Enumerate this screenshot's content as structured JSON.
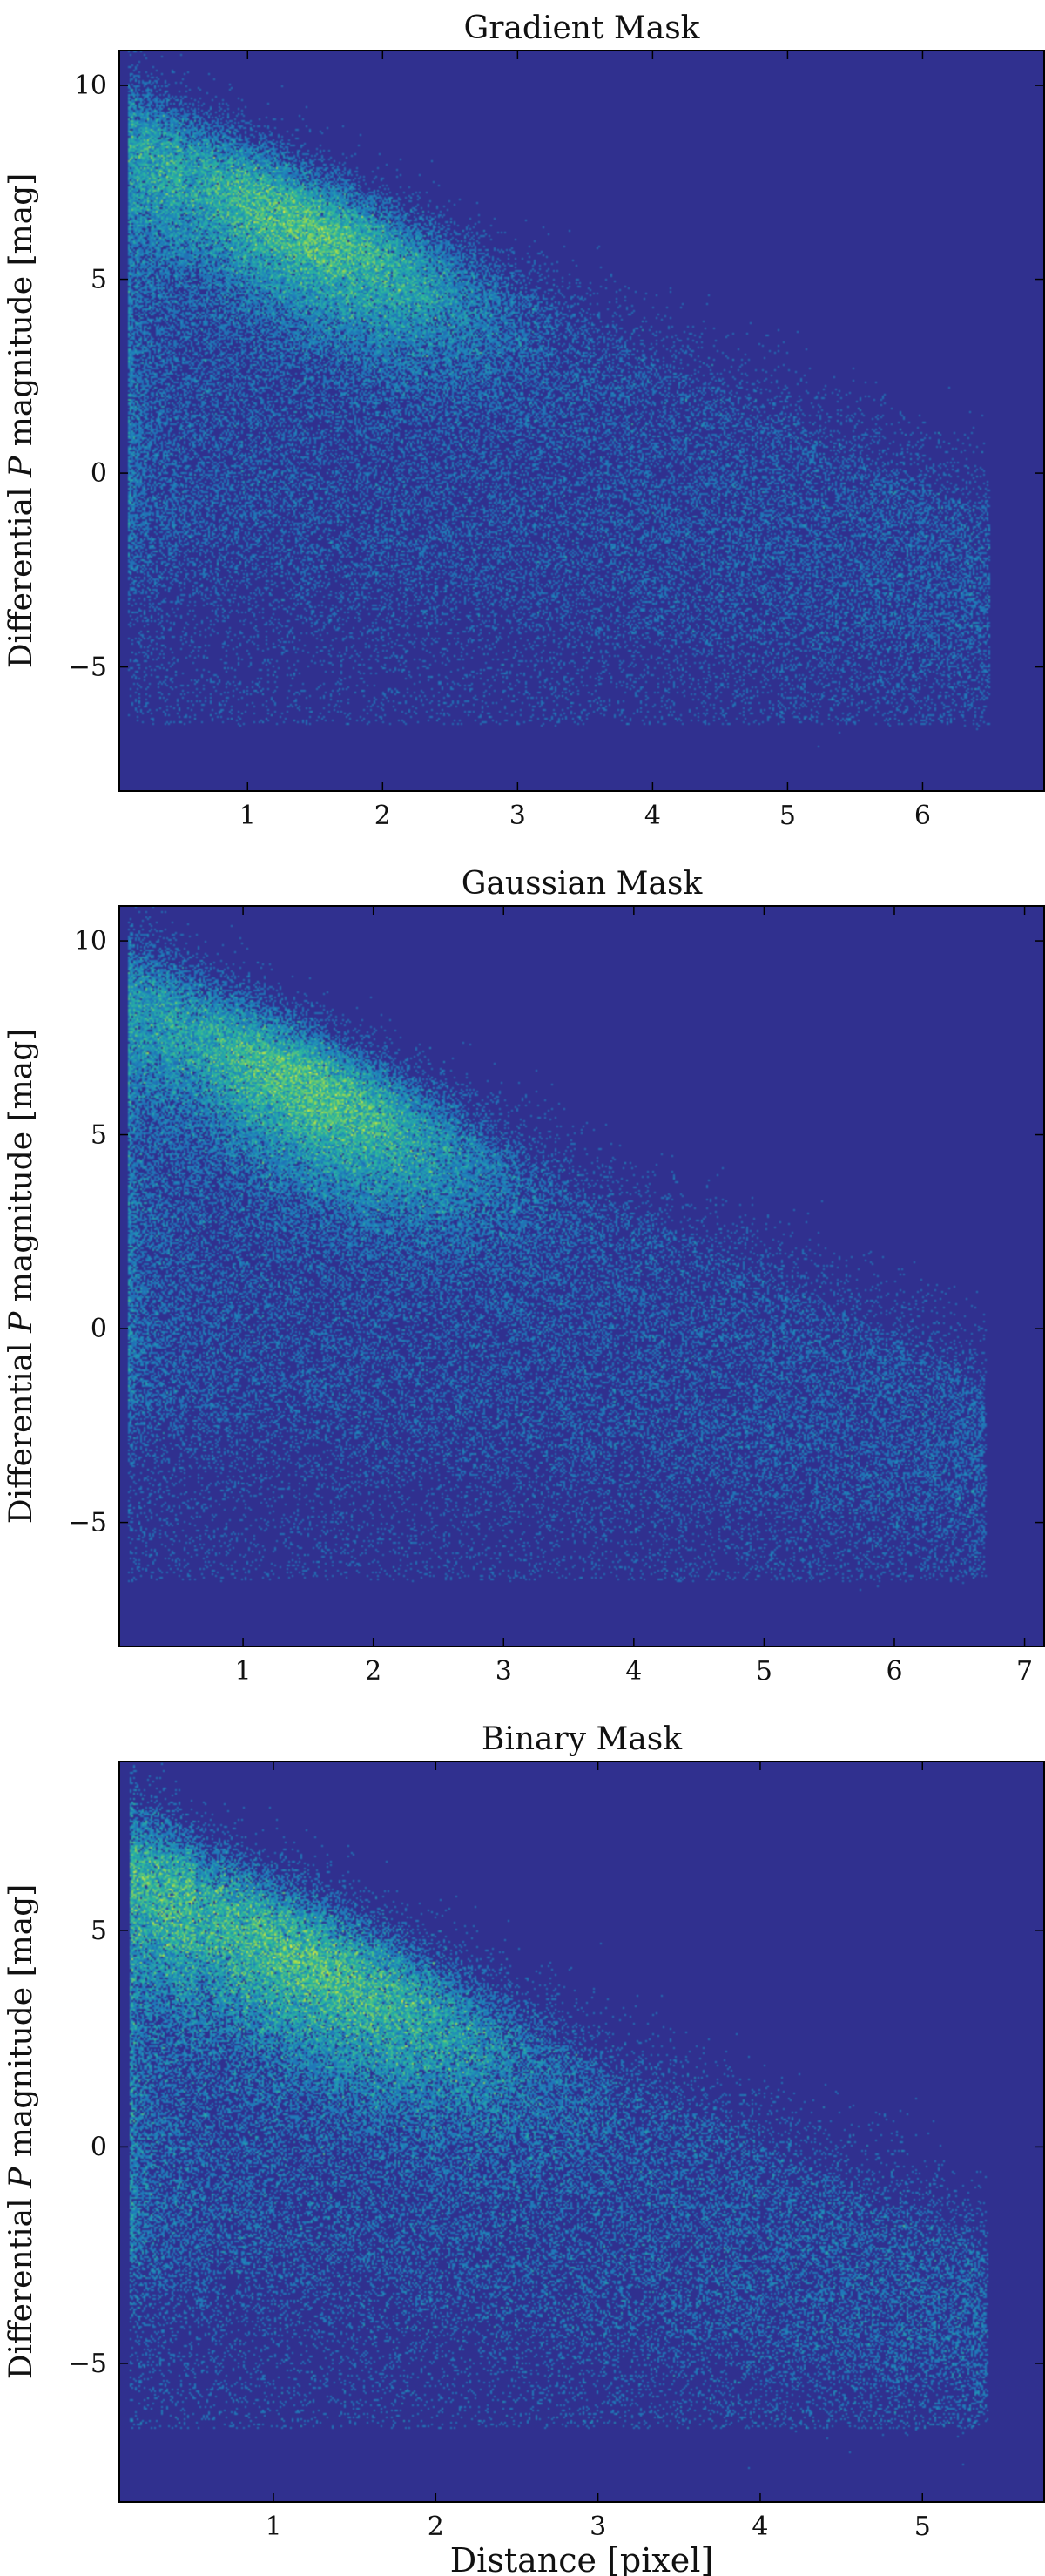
{
  "chart_data": [
    {
      "type": "heatmap",
      "title": "Gradient Mask",
      "xlabel": "",
      "ylabel": "Differential P magnitude [mag]",
      "ylabel_parts": [
        "Differential ",
        "P",
        " magnitude [mag]"
      ],
      "xlim": [
        0.05,
        6.9
      ],
      "ylim": [
        -8.2,
        10.9
      ],
      "xticks": [
        1,
        2,
        3,
        4,
        5,
        6
      ],
      "yticks": [
        -5,
        0,
        5,
        10
      ],
      "colormap": "viridis",
      "background_color": "#30308f",
      "density_model": {
        "ridge": {
          "x_start": 0.15,
          "x_end": 4.0,
          "y_start": 9.2,
          "y_end": 3.0
        },
        "peak": {
          "x": 1.4,
          "y": 6.6
        },
        "extent_x": 6.5,
        "sparse_tail_to_y": -6.5
      }
    },
    {
      "type": "heatmap",
      "title": "Gaussian Mask",
      "xlabel": "",
      "ylabel": "Differential P magnitude [mag]",
      "ylabel_parts": [
        "Differential ",
        "P",
        " magnitude [mag]"
      ],
      "xlim": [
        0.05,
        7.15
      ],
      "ylim": [
        -8.2,
        10.9
      ],
      "xticks": [
        1,
        2,
        3,
        4,
        5,
        6,
        7
      ],
      "yticks": [
        -5,
        0,
        5,
        10
      ],
      "colormap": "viridis",
      "background_color": "#30308f",
      "density_model": {
        "ridge": {
          "x_start": 0.15,
          "x_end": 4.0,
          "y_start": 9.2,
          "y_end": 3.0
        },
        "peak": {
          "x": 1.5,
          "y": 6.6
        },
        "extent_x": 6.7,
        "sparse_tail_to_y": -6.5
      }
    },
    {
      "type": "heatmap",
      "title": "Binary Mask",
      "xlabel": "Distance [pixel]",
      "ylabel": "Differential P magnitude [mag]",
      "ylabel_parts": [
        "Differential ",
        "P",
        " magnitude [mag]"
      ],
      "xlim": [
        0.05,
        5.75
      ],
      "ylim": [
        -8.2,
        8.9
      ],
      "xticks": [
        1,
        2,
        3,
        4,
        5
      ],
      "yticks": [
        -5,
        0,
        5
      ],
      "colormap": "viridis",
      "background_color": "#30308f",
      "density_model": {
        "ridge": {
          "x_start": 0.15,
          "x_end": 3.5,
          "y_start": 7.0,
          "y_end": 1.0
        },
        "peak": {
          "x": 1.2,
          "y": 4.8
        },
        "extent_x": 5.4,
        "sparse_tail_to_y": -6.5
      }
    }
  ]
}
